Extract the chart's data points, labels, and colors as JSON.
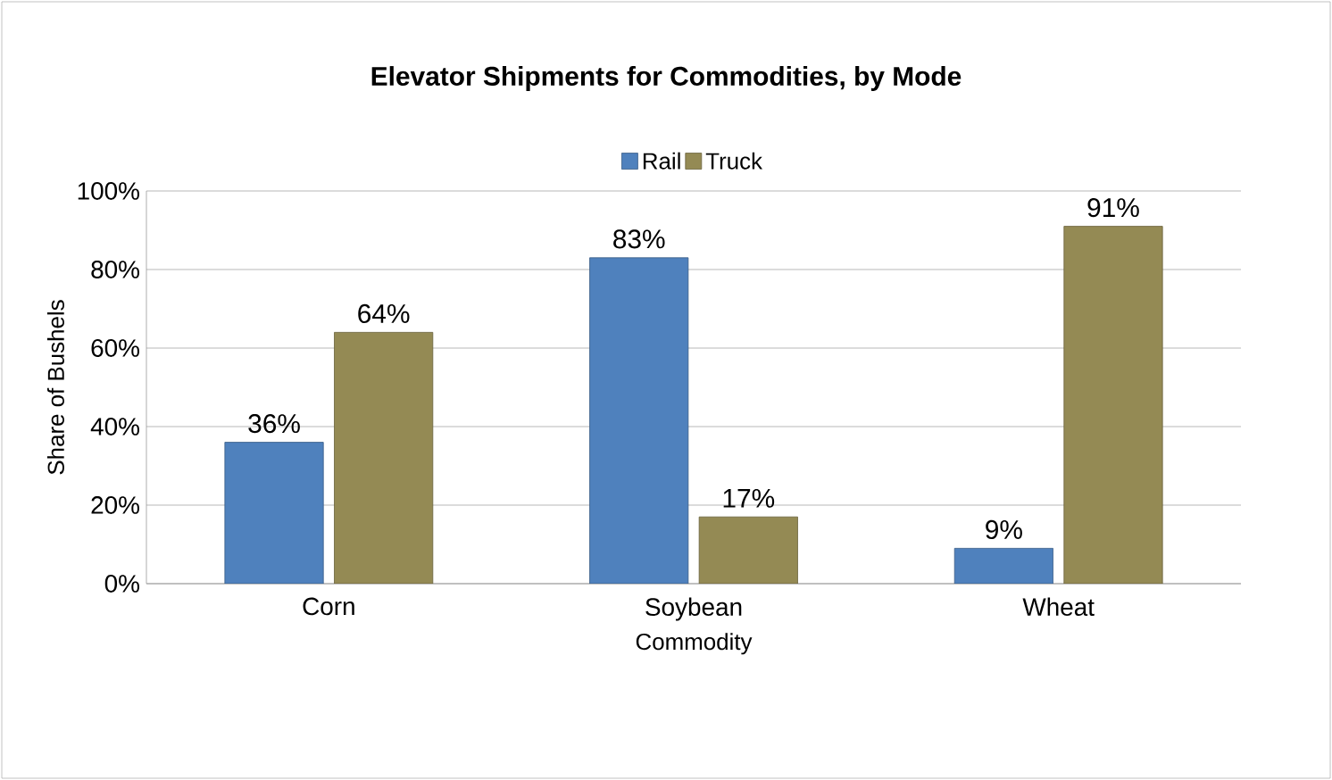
{
  "chart_data": {
    "type": "bar",
    "title": "Elevator Shipments for Commodities, by Mode",
    "xlabel": "Commodity",
    "ylabel": "Share of Bushels",
    "categories": [
      "Corn",
      "Soybean",
      "Wheat"
    ],
    "series": [
      {
        "name": "Rail",
        "color": "#4f81bd",
        "values": [
          36,
          83,
          9
        ],
        "value_labels": [
          "36%",
          "83%",
          "9%"
        ]
      },
      {
        "name": "Truck",
        "color": "#948a54",
        "values": [
          64,
          17,
          91
        ],
        "value_labels": [
          "64%",
          "17%",
          "91%"
        ]
      }
    ],
    "ylim": [
      0,
      100
    ],
    "yticks": [
      {
        "value": 0,
        "label": "0%"
      },
      {
        "value": 20,
        "label": "20%"
      },
      {
        "value": 40,
        "label": "40%"
      },
      {
        "value": 60,
        "label": "60%"
      },
      {
        "value": 80,
        "label": "80%"
      },
      {
        "value": 100,
        "label": "100%"
      }
    ],
    "grid": "y",
    "legend": "top"
  }
}
